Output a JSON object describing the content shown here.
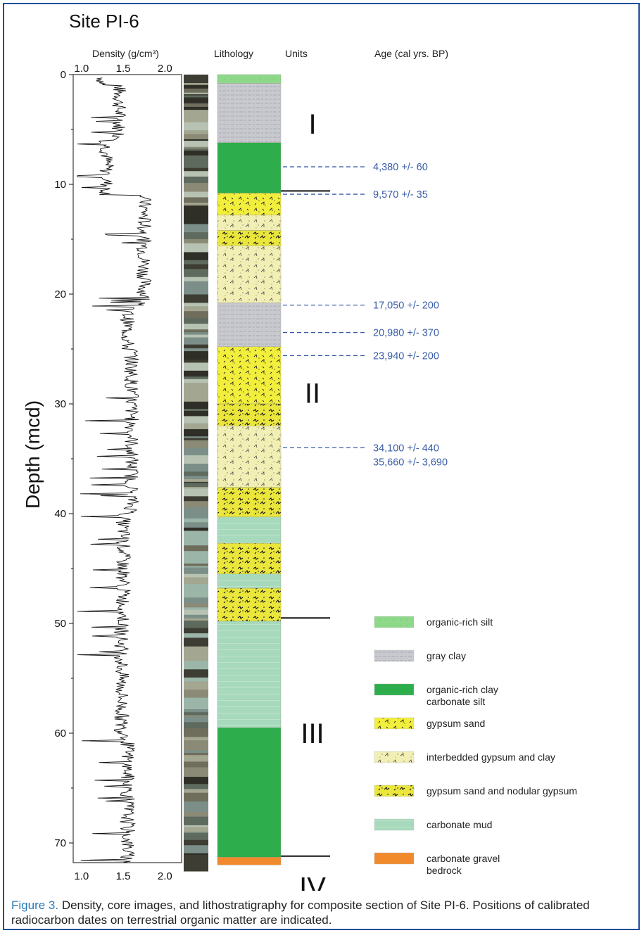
{
  "title": "Site PI-6",
  "headers": {
    "density": "Density (g/cm³)",
    "lithology": "Lithology",
    "units": "Units",
    "age": "Age (cal yrs. BP)"
  },
  "depth_axis": {
    "label": "Depth (mcd)",
    "range": [
      0,
      72
    ],
    "ticks": [
      "0",
      "10",
      "20",
      "30",
      "40",
      "50",
      "60",
      "70"
    ]
  },
  "density_axis": {
    "range": [
      0.9,
      2.2
    ],
    "ticks": [
      "1.0",
      "1.5",
      "2.0"
    ]
  },
  "units": [
    {
      "label": "I",
      "depth": 4.5
    },
    {
      "label": "II",
      "depth": 29
    },
    {
      "label": "III",
      "depth": 60
    },
    {
      "label": "IV",
      "depth": 74
    }
  ],
  "unit_boundaries": [
    10.6,
    49.5,
    71.2
  ],
  "ages": [
    {
      "label": "4,380 +/- 60",
      "depth": 8.4
    },
    {
      "label": "9,570 +/- 35",
      "depth": 10.9
    },
    {
      "label": "17,050 +/- 200",
      "depth": 21.0
    },
    {
      "label": "20,980 +/- 370",
      "depth": 23.5
    },
    {
      "label": "23,940 +/- 200",
      "depth": 25.6
    },
    {
      "label": "34,100 +/- 440",
      "depth": 34.0
    },
    {
      "label": "35,660 +/- 3,690",
      "depth": 35.3
    }
  ],
  "lithology": [
    {
      "from": 0,
      "to": 0.8,
      "type": "organic-rich-silt"
    },
    {
      "from": 0.8,
      "to": 6.2,
      "type": "gray-clay"
    },
    {
      "from": 6.2,
      "to": 10.8,
      "type": "organic-rich-clay"
    },
    {
      "from": 10.8,
      "to": 12.8,
      "type": "gypsum-sand"
    },
    {
      "from": 12.8,
      "to": 14.2,
      "type": "interbedded"
    },
    {
      "from": 14.2,
      "to": 15.6,
      "type": "nodular"
    },
    {
      "from": 15.6,
      "to": 20.8,
      "type": "interbedded"
    },
    {
      "from": 20.8,
      "to": 24.8,
      "type": "gray-clay"
    },
    {
      "from": 24.8,
      "to": 30.0,
      "type": "gypsum-sand"
    },
    {
      "from": 30.0,
      "to": 32.0,
      "type": "nodular"
    },
    {
      "from": 32.0,
      "to": 37.6,
      "type": "interbedded"
    },
    {
      "from": 37.6,
      "to": 40.3,
      "type": "nodular"
    },
    {
      "from": 40.3,
      "to": 42.7,
      "type": "carbonate-mud"
    },
    {
      "from": 42.7,
      "to": 45.5,
      "type": "nodular"
    },
    {
      "from": 45.5,
      "to": 46.8,
      "type": "carbonate-mud"
    },
    {
      "from": 46.8,
      "to": 49.8,
      "type": "nodular"
    },
    {
      "from": 49.8,
      "to": 59.5,
      "type": "carbonate-mud"
    },
    {
      "from": 59.5,
      "to": 71.3,
      "type": "organic-rich-clay"
    },
    {
      "from": 71.3,
      "to": 72.0,
      "type": "carbonate-gravel"
    }
  ],
  "legend": [
    {
      "type": "organic-rich-silt",
      "lines": [
        "organic-rich silt"
      ]
    },
    {
      "type": "gray-clay",
      "lines": [
        "gray clay"
      ]
    },
    {
      "type": "organic-rich-clay",
      "lines": [
        "organic-rich clay",
        "carbonate silt"
      ]
    },
    {
      "type": "gypsum-sand",
      "lines": [
        "gypsum sand"
      ]
    },
    {
      "type": "interbedded",
      "lines": [
        "interbedded gypsum and clay"
      ]
    },
    {
      "type": "nodular",
      "lines": [
        "gypsum sand and nodular gypsum"
      ]
    },
    {
      "type": "carbonate-mud",
      "lines": [
        "carbonate mud"
      ]
    },
    {
      "type": "carbonate-gravel",
      "lines": [
        "carbonate gravel",
        "bedrock"
      ]
    }
  ],
  "colors": {
    "organic-rich-silt": "#8ed88a",
    "gray-clay": "#c7c9cf",
    "organic-rich-clay": "#2dad4b",
    "gypsum-sand": "#f2ee3c",
    "interbedded": "#f1efb4",
    "nodular": "#eae63c",
    "carbonate-mud": "#a7d9bc",
    "carbonate-gravel": "#f08a2c",
    "age_text": "#3a5ca8",
    "frame": "#1f4e9b",
    "caption_label": "#2a7ab8"
  },
  "caption": {
    "label": "Figure 3.",
    "text": " Density, core images, and lithostratigraphy for composite section of Site PI-6. Positions of calibrated radiocarbon dates on terrestrial organic matter are indicated."
  }
}
